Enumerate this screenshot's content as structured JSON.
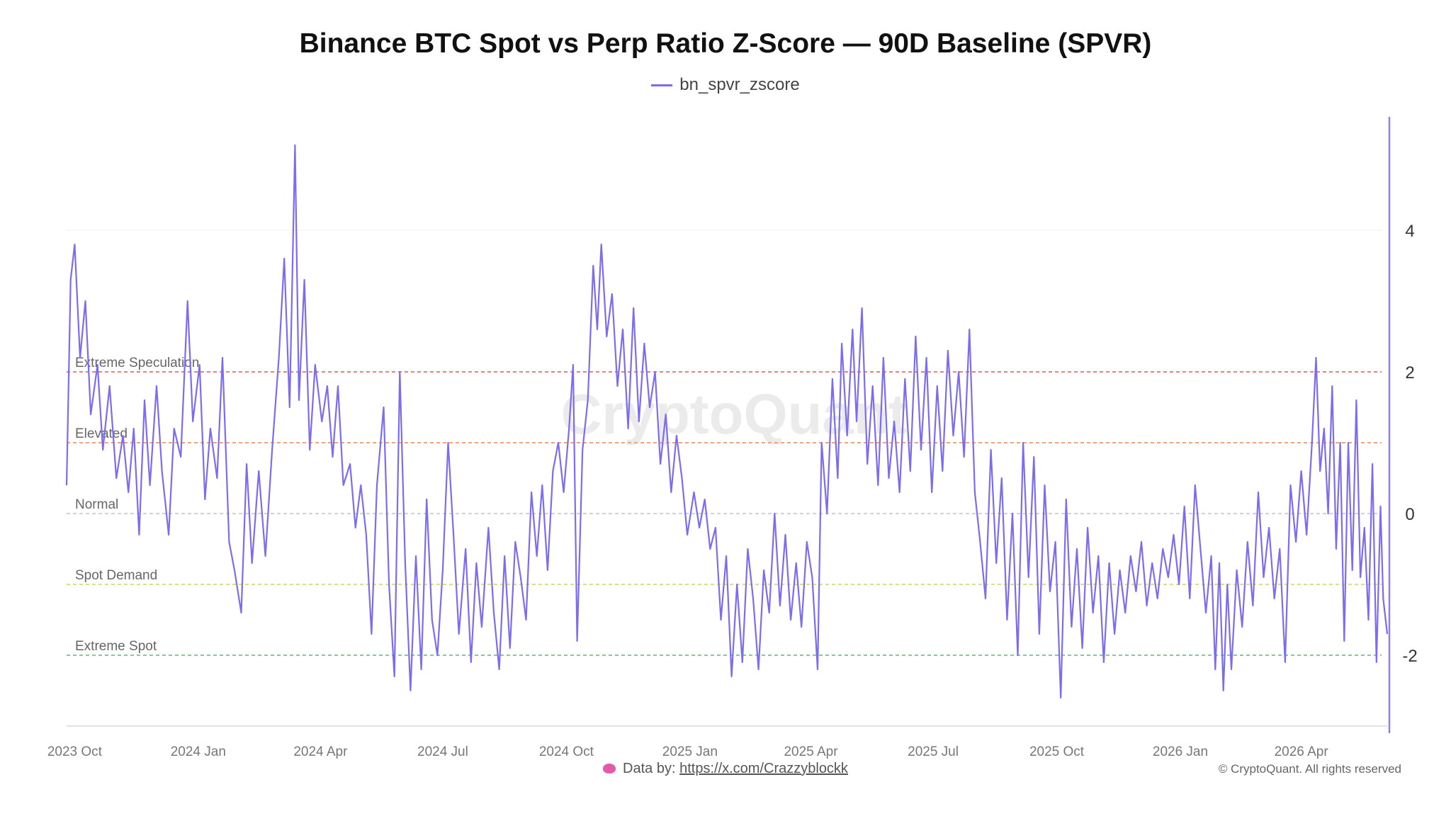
{
  "chart_data": {
    "type": "line",
    "title": "Binance BTC Spot vs Perp Ratio Z-Score — 90D Baseline (SPVR)",
    "watermark": "CryptoQuant",
    "legend": {
      "placement": "top-center",
      "entries": [
        "bn_spvr_zscore"
      ]
    },
    "series": [
      {
        "name": "bn_spvr_zscore",
        "color": "#7b6cf0",
        "points": [
          [
            "2023-09-25",
            0.4
          ],
          [
            "2023-09-28",
            3.3
          ],
          [
            "2023-10-01",
            3.8
          ],
          [
            "2023-10-05",
            2.2
          ],
          [
            "2023-10-09",
            3.0
          ],
          [
            "2023-10-13",
            1.4
          ],
          [
            "2023-10-18",
            2.1
          ],
          [
            "2023-10-22",
            0.9
          ],
          [
            "2023-10-27",
            1.8
          ],
          [
            "2023-11-01",
            0.5
          ],
          [
            "2023-11-06",
            1.1
          ],
          [
            "2023-11-10",
            0.3
          ],
          [
            "2023-11-14",
            1.2
          ],
          [
            "2023-11-18",
            -0.3
          ],
          [
            "2023-11-22",
            1.6
          ],
          [
            "2023-11-26",
            0.4
          ],
          [
            "2023-12-01",
            1.8
          ],
          [
            "2023-12-05",
            0.6
          ],
          [
            "2023-12-10",
            -0.3
          ],
          [
            "2023-12-14",
            1.2
          ],
          [
            "2023-12-19",
            0.8
          ],
          [
            "2023-12-24",
            3.0
          ],
          [
            "2023-12-28",
            1.3
          ],
          [
            "2024-01-02",
            2.1
          ],
          [
            "2024-01-06",
            0.2
          ],
          [
            "2024-01-10",
            1.2
          ],
          [
            "2024-01-15",
            0.5
          ],
          [
            "2024-01-19",
            2.2
          ],
          [
            "2024-01-24",
            -0.4
          ],
          [
            "2024-01-28",
            -0.8
          ],
          [
            "2024-02-02",
            -1.4
          ],
          [
            "2024-02-06",
            0.7
          ],
          [
            "2024-02-10",
            -0.7
          ],
          [
            "2024-02-15",
            0.6
          ],
          [
            "2024-02-20",
            -0.6
          ],
          [
            "2024-02-25",
            0.9
          ],
          [
            "2024-03-01",
            2.2
          ],
          [
            "2024-03-05",
            3.6
          ],
          [
            "2024-03-09",
            1.5
          ],
          [
            "2024-03-13",
            5.2
          ],
          [
            "2024-03-16",
            1.6
          ],
          [
            "2024-03-20",
            3.3
          ],
          [
            "2024-03-24",
            0.9
          ],
          [
            "2024-03-28",
            2.1
          ],
          [
            "2024-04-02",
            1.3
          ],
          [
            "2024-04-06",
            1.8
          ],
          [
            "2024-04-10",
            0.8
          ],
          [
            "2024-04-14",
            1.8
          ],
          [
            "2024-04-18",
            0.4
          ],
          [
            "2024-04-23",
            0.7
          ],
          [
            "2024-04-27",
            -0.2
          ],
          [
            "2024-05-01",
            0.4
          ],
          [
            "2024-05-05",
            -0.3
          ],
          [
            "2024-05-09",
            -1.7
          ],
          [
            "2024-05-13",
            0.4
          ],
          [
            "2024-05-18",
            1.5
          ],
          [
            "2024-05-22",
            -1.0
          ],
          [
            "2024-05-26",
            -2.3
          ],
          [
            "2024-05-30",
            2.0
          ],
          [
            "2024-06-03",
            -0.7
          ],
          [
            "2024-06-07",
            -2.5
          ],
          [
            "2024-06-11",
            -0.6
          ],
          [
            "2024-06-15",
            -2.2
          ],
          [
            "2024-06-19",
            0.2
          ],
          [
            "2024-06-23",
            -1.5
          ],
          [
            "2024-06-27",
            -2.0
          ],
          [
            "2024-07-01",
            -0.8
          ],
          [
            "2024-07-05",
            1.0
          ],
          [
            "2024-07-09",
            -0.3
          ],
          [
            "2024-07-13",
            -1.7
          ],
          [
            "2024-07-18",
            -0.5
          ],
          [
            "2024-07-22",
            -2.1
          ],
          [
            "2024-07-26",
            -0.7
          ],
          [
            "2024-07-30",
            -1.6
          ],
          [
            "2024-08-04",
            -0.2
          ],
          [
            "2024-08-08",
            -1.4
          ],
          [
            "2024-08-12",
            -2.2
          ],
          [
            "2024-08-16",
            -0.6
          ],
          [
            "2024-08-20",
            -1.9
          ],
          [
            "2024-08-24",
            -0.4
          ],
          [
            "2024-08-28",
            -0.9
          ],
          [
            "2024-09-01",
            -1.5
          ],
          [
            "2024-09-05",
            0.3
          ],
          [
            "2024-09-09",
            -0.6
          ],
          [
            "2024-09-13",
            0.4
          ],
          [
            "2024-09-17",
            -0.8
          ],
          [
            "2024-09-21",
            0.6
          ],
          [
            "2024-09-25",
            1.0
          ],
          [
            "2024-09-29",
            0.3
          ],
          [
            "2024-10-03",
            1.2
          ],
          [
            "2024-10-06",
            2.1
          ],
          [
            "2024-10-09",
            -1.8
          ],
          [
            "2024-10-13",
            0.9
          ],
          [
            "2024-10-17",
            1.6
          ],
          [
            "2024-10-21",
            3.5
          ],
          [
            "2024-10-24",
            2.6
          ],
          [
            "2024-10-27",
            3.8
          ],
          [
            "2024-10-31",
            2.5
          ],
          [
            "2024-11-04",
            3.1
          ],
          [
            "2024-11-08",
            1.8
          ],
          [
            "2024-11-12",
            2.6
          ],
          [
            "2024-11-16",
            1.2
          ],
          [
            "2024-11-20",
            2.9
          ],
          [
            "2024-11-24",
            1.3
          ],
          [
            "2024-11-28",
            2.4
          ],
          [
            "2024-12-02",
            1.5
          ],
          [
            "2024-12-06",
            2.0
          ],
          [
            "2024-12-10",
            0.7
          ],
          [
            "2024-12-14",
            1.4
          ],
          [
            "2024-12-18",
            0.3
          ],
          [
            "2024-12-22",
            1.1
          ],
          [
            "2024-12-26",
            0.5
          ],
          [
            "2024-12-30",
            -0.3
          ],
          [
            "2025-01-04",
            0.3
          ],
          [
            "2025-01-08",
            -0.2
          ],
          [
            "2025-01-12",
            0.2
          ],
          [
            "2025-01-16",
            -0.5
          ],
          [
            "2025-01-20",
            -0.2
          ],
          [
            "2025-01-24",
            -1.5
          ],
          [
            "2025-01-28",
            -0.6
          ],
          [
            "2025-02-01",
            -2.3
          ],
          [
            "2025-02-05",
            -1.0
          ],
          [
            "2025-02-09",
            -2.1
          ],
          [
            "2025-02-13",
            -0.5
          ],
          [
            "2025-02-17",
            -1.2
          ],
          [
            "2025-02-21",
            -2.2
          ],
          [
            "2025-02-25",
            -0.8
          ],
          [
            "2025-03-01",
            -1.4
          ],
          [
            "2025-03-05",
            0.0
          ],
          [
            "2025-03-09",
            -1.3
          ],
          [
            "2025-03-13",
            -0.3
          ],
          [
            "2025-03-17",
            -1.5
          ],
          [
            "2025-03-21",
            -0.7
          ],
          [
            "2025-03-25",
            -1.6
          ],
          [
            "2025-03-29",
            -0.4
          ],
          [
            "2025-04-02",
            -0.9
          ],
          [
            "2025-04-06",
            -2.2
          ],
          [
            "2025-04-09",
            1.0
          ],
          [
            "2025-04-13",
            0.0
          ],
          [
            "2025-04-17",
            1.9
          ],
          [
            "2025-04-21",
            0.5
          ],
          [
            "2025-04-24",
            2.4
          ],
          [
            "2025-04-28",
            1.1
          ],
          [
            "2025-05-02",
            2.6
          ],
          [
            "2025-05-05",
            1.3
          ],
          [
            "2025-05-09",
            2.9
          ],
          [
            "2025-05-13",
            0.7
          ],
          [
            "2025-05-17",
            1.8
          ],
          [
            "2025-05-21",
            0.4
          ],
          [
            "2025-05-25",
            2.2
          ],
          [
            "2025-05-29",
            0.5
          ],
          [
            "2025-06-02",
            1.3
          ],
          [
            "2025-06-06",
            0.3
          ],
          [
            "2025-06-10",
            1.9
          ],
          [
            "2025-06-14",
            0.6
          ],
          [
            "2025-06-18",
            2.5
          ],
          [
            "2025-06-22",
            0.9
          ],
          [
            "2025-06-26",
            2.2
          ],
          [
            "2025-06-30",
            0.3
          ],
          [
            "2025-07-04",
            1.8
          ],
          [
            "2025-07-08",
            0.6
          ],
          [
            "2025-07-12",
            2.3
          ],
          [
            "2025-07-16",
            1.1
          ],
          [
            "2025-07-20",
            2.0
          ],
          [
            "2025-07-24",
            0.8
          ],
          [
            "2025-07-28",
            2.6
          ],
          [
            "2025-08-01",
            0.3
          ],
          [
            "2025-08-05",
            -0.4
          ],
          [
            "2025-08-09",
            -1.2
          ],
          [
            "2025-08-13",
            0.9
          ],
          [
            "2025-08-17",
            -0.7
          ],
          [
            "2025-08-21",
            0.5
          ],
          [
            "2025-08-25",
            -1.5
          ],
          [
            "2025-08-29",
            0.0
          ],
          [
            "2025-09-02",
            -2.0
          ],
          [
            "2025-09-06",
            1.0
          ],
          [
            "2025-09-10",
            -0.9
          ],
          [
            "2025-09-14",
            0.8
          ],
          [
            "2025-09-18",
            -1.7
          ],
          [
            "2025-09-22",
            0.4
          ],
          [
            "2025-09-26",
            -1.1
          ],
          [
            "2025-09-30",
            -0.4
          ],
          [
            "2025-10-04",
            -2.6
          ],
          [
            "2025-10-08",
            0.2
          ],
          [
            "2025-10-12",
            -1.6
          ],
          [
            "2025-10-16",
            -0.5
          ],
          [
            "2025-10-20",
            -1.9
          ],
          [
            "2025-10-24",
            -0.2
          ],
          [
            "2025-10-28",
            -1.4
          ],
          [
            "2025-11-01",
            -0.6
          ],
          [
            "2025-11-05",
            -2.1
          ],
          [
            "2025-11-09",
            -0.7
          ],
          [
            "2025-11-13",
            -1.7
          ],
          [
            "2025-11-17",
            -0.8
          ],
          [
            "2025-11-21",
            -1.4
          ],
          [
            "2025-11-25",
            -0.6
          ],
          [
            "2025-11-29",
            -1.1
          ],
          [
            "2025-12-03",
            -0.4
          ],
          [
            "2025-12-07",
            -1.3
          ],
          [
            "2025-12-11",
            -0.7
          ],
          [
            "2025-12-15",
            -1.2
          ],
          [
            "2025-12-19",
            -0.5
          ],
          [
            "2025-12-23",
            -0.9
          ],
          [
            "2025-12-27",
            -0.3
          ],
          [
            "2025-12-31",
            -1.0
          ],
          [
            "2026-01-04",
            0.1
          ],
          [
            "2026-01-08",
            -1.2
          ],
          [
            "2026-01-12",
            0.4
          ],
          [
            "2026-01-16",
            -0.5
          ],
          [
            "2026-01-20",
            -1.4
          ],
          [
            "2026-01-24",
            -0.6
          ],
          [
            "2026-01-27",
            -2.2
          ],
          [
            "2026-01-30",
            -0.7
          ],
          [
            "2026-02-02",
            -2.5
          ],
          [
            "2026-02-05",
            -1.0
          ],
          [
            "2026-02-08",
            -2.2
          ],
          [
            "2026-02-12",
            -0.8
          ],
          [
            "2026-02-16",
            -1.6
          ],
          [
            "2026-02-20",
            -0.4
          ],
          [
            "2026-02-24",
            -1.3
          ],
          [
            "2026-02-28",
            0.3
          ],
          [
            "2026-03-04",
            -0.9
          ],
          [
            "2026-03-08",
            -0.2
          ],
          [
            "2026-03-12",
            -1.2
          ],
          [
            "2026-03-16",
            -0.5
          ],
          [
            "2026-03-20",
            -2.1
          ],
          [
            "2026-03-24",
            0.4
          ],
          [
            "2026-03-28",
            -0.4
          ],
          [
            "2026-04-01",
            0.6
          ],
          [
            "2026-04-05",
            -0.3
          ],
          [
            "2026-04-09",
            1.0
          ],
          [
            "2026-04-12",
            2.2
          ],
          [
            "2026-04-15",
            0.6
          ],
          [
            "2026-04-18",
            1.2
          ],
          [
            "2026-04-21",
            0.0
          ],
          [
            "2026-04-24",
            1.8
          ],
          [
            "2026-04-27",
            -0.5
          ],
          [
            "2026-04-30",
            1.0
          ],
          [
            "2026-05-03",
            -1.8
          ],
          [
            "2026-05-06",
            1.0
          ],
          [
            "2026-05-09",
            -0.8
          ],
          [
            "2026-05-12",
            1.6
          ],
          [
            "2026-05-15",
            -0.9
          ],
          [
            "2026-05-18",
            -0.2
          ],
          [
            "2026-05-21",
            -1.5
          ],
          [
            "2026-05-24",
            0.7
          ],
          [
            "2026-05-27",
            -2.1
          ],
          [
            "2026-05-30",
            0.1
          ],
          [
            "2026-06-01",
            -1.2
          ],
          [
            "2026-06-04",
            -1.7
          ]
        ]
      }
    ],
    "reference_lines": [
      {
        "label": "Extreme Speculation",
        "value": 2,
        "color": "#e8837b"
      },
      {
        "label": "Elevated",
        "value": 1,
        "color": "#f0a47c"
      },
      {
        "label": "Normal",
        "value": 0,
        "color": "#cfd2d8"
      },
      {
        "label": "Spot Demand",
        "value": -1,
        "color": "#d7de8c"
      },
      {
        "label": "Extreme Spot",
        "value": -2,
        "color": "#8cc79a"
      }
    ],
    "y_axis": {
      "position": "right",
      "ticks": [
        4,
        2,
        0,
        -2
      ],
      "ylim": [
        -3,
        5.6
      ]
    },
    "x_axis": {
      "xlim": [
        "2023-09-25",
        "2026-06-04"
      ],
      "ticks": [
        {
          "label": "2023 Oct",
          "date": "2023-10-01"
        },
        {
          "label": "2024 Jan",
          "date": "2024-01-01"
        },
        {
          "label": "2024 Apr",
          "date": "2024-04-01"
        },
        {
          "label": "2024 Jul",
          "date": "2024-07-01"
        },
        {
          "label": "2024 Oct",
          "date": "2024-10-01"
        },
        {
          "label": "2025 Jan",
          "date": "2025-01-01"
        },
        {
          "label": "2025 Apr",
          "date": "2025-04-01"
        },
        {
          "label": "2025 Jul",
          "date": "2025-07-01"
        },
        {
          "label": "2025 Oct",
          "date": "2025-10-01"
        },
        {
          "label": "2026 Jan",
          "date": "2026-01-01"
        },
        {
          "label": "2026 Apr",
          "date": "2026-04-01"
        }
      ]
    },
    "grid": false
  },
  "footer": {
    "data_by_label": "Data by:",
    "data_by_link": "https://x.com/Crazzyblockk",
    "copyright": "© CryptoQuant. All rights reserved"
  }
}
